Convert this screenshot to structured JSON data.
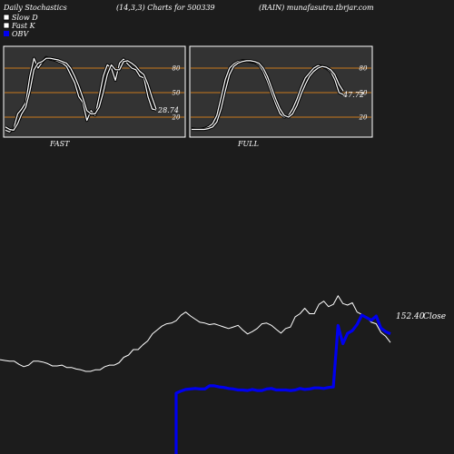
{
  "header": {
    "left": "Daily Stochastics",
    "middle": "(14,3,3) Charts for 500339",
    "right": "(RAIN) munafasutra.tbrjar.com"
  },
  "legend": [
    {
      "label": "Slow  D",
      "color": "#ffffff"
    },
    {
      "label": "Fast K",
      "color": "#ffffff"
    },
    {
      "label": "OBV",
      "color": "#0000ee"
    }
  ],
  "colors": {
    "background": "#1c1c1c",
    "panel_background": "#333333",
    "level_line": "#c8781e",
    "stoch_line": "#ffffff",
    "close_line": "#ffffff",
    "obv_line": "#0000ee"
  },
  "chart_data": [
    {
      "type": "line",
      "title": "FAST",
      "ylim": [
        0,
        100
      ],
      "y_ticks": [
        20,
        50,
        80
      ],
      "levels": [
        20,
        50,
        80
      ],
      "last_value_label": "28.74",
      "series": [
        {
          "values": [
            4,
            2,
            6,
            24,
            30,
            38,
            70,
            92,
            80,
            87,
            93,
            91,
            90,
            88,
            86,
            82,
            72,
            62,
            45,
            38,
            16,
            28,
            22,
            45,
            70,
            84,
            80,
            65,
            86,
            91,
            85,
            80,
            78,
            70,
            68,
            45,
            30,
            28.74
          ]
        },
        {
          "values": [
            8,
            5,
            4,
            12,
            24,
            32,
            52,
            78,
            86,
            88,
            92,
            92,
            91,
            90,
            88,
            86,
            80,
            70,
            58,
            44,
            28,
            24,
            24,
            32,
            50,
            72,
            84,
            78,
            78,
            88,
            89,
            86,
            82,
            76,
            72,
            60,
            44,
            30
          ]
        }
      ]
    },
    {
      "type": "line",
      "title": "FULL",
      "ylim": [
        0,
        100
      ],
      "y_ticks": [
        20,
        50,
        80
      ],
      "levels": [
        20,
        50,
        80
      ],
      "last_value_label": "47.72",
      "series": [
        {
          "values": [
            6,
            5,
            5,
            6,
            8,
            12,
            22,
            44,
            66,
            80,
            85,
            88,
            89,
            89,
            88,
            87,
            84,
            76,
            64,
            50,
            36,
            24,
            20,
            22,
            30,
            42,
            56,
            68,
            74,
            80,
            83,
            82,
            80,
            76,
            66,
            50,
            47.72
          ]
        },
        {
          "values": [
            5,
            5,
            5,
            5,
            6,
            8,
            14,
            30,
            52,
            72,
            82,
            86,
            88,
            89,
            89,
            88,
            86,
            80,
            70,
            56,
            42,
            30,
            22,
            20,
            24,
            34,
            48,
            60,
            70,
            76,
            80,
            82,
            81,
            78,
            72,
            60,
            52
          ]
        }
      ]
    },
    {
      "type": "line",
      "series": [
        {
          "name": "Close",
          "values": [
            150.2,
            150.1,
            150.0,
            150.0,
            149.6,
            149.3,
            149.5,
            150.0,
            150.0,
            149.9,
            149.7,
            149.4,
            149.4,
            149.5,
            149.2,
            149.2,
            149.0,
            148.9,
            148.7,
            148.7,
            148.9,
            148.9,
            149.3,
            149.5,
            149.5,
            149.8,
            150.5,
            150.8,
            151.5,
            151.5,
            152.1,
            152.6,
            153.5,
            154.0,
            154.5,
            154.8,
            154.9,
            155.2,
            155.9,
            156.3,
            155.8,
            155.4,
            155.0,
            154.9,
            154.7,
            154.8,
            154.6,
            154.4,
            154.2,
            154.4,
            154.6,
            154.0,
            153.5,
            153.8,
            154.2,
            154.8,
            154.9,
            154.6,
            154.1,
            153.6,
            154.2,
            154.4,
            155.7,
            156.1,
            156.8,
            156.1,
            156.1,
            157.3,
            157.7,
            157.0,
            157.3,
            158.4,
            157.4,
            157.2,
            157.5,
            156.3,
            156.0,
            155.6,
            155.0,
            154.8,
            153.7,
            153.2,
            152.4
          ]
        },
        {
          "name": "OBV",
          "values": [
            0,
            0,
            0,
            0,
            0,
            0,
            0,
            0,
            0,
            0,
            0,
            0,
            0,
            0,
            0,
            0,
            0,
            0,
            0,
            0,
            0,
            0,
            0,
            0,
            0,
            0,
            0,
            0,
            0,
            0,
            0,
            0,
            0,
            0,
            0,
            0,
            0,
            110,
            114,
            117,
            118,
            119,
            118,
            118,
            124,
            124,
            122,
            121,
            119,
            118,
            116,
            116,
            115,
            117,
            115,
            115,
            118,
            119,
            116,
            116,
            116,
            115,
            116,
            119,
            117,
            118,
            120,
            120,
            119,
            121,
            122,
            240,
            205,
            225,
            230,
            242,
            260,
            255,
            250,
            258,
            235,
            228,
            224
          ]
        }
      ],
      "last_value_label": "152.40",
      "last_value_suffix": "Close"
    }
  ]
}
